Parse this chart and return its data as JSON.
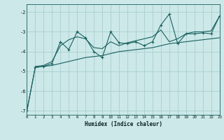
{
  "xlabel": "Humidex (Indice chaleur)",
  "bg_color": "#cce8e8",
  "grid_color": "#aacece",
  "line_color": "#1a6060",
  "xlim": [
    0,
    23
  ],
  "ylim": [
    -7.2,
    -1.6
  ],
  "yticks": [
    -7,
    -6,
    -5,
    -4,
    -3,
    -2
  ],
  "xticks": [
    0,
    1,
    2,
    3,
    4,
    5,
    6,
    7,
    8,
    9,
    10,
    11,
    12,
    13,
    14,
    15,
    16,
    17,
    18,
    19,
    20,
    21,
    22,
    23
  ],
  "main_x": [
    0,
    1,
    2,
    3,
    4,
    5,
    6,
    7,
    8,
    9,
    10,
    11,
    12,
    13,
    14,
    15,
    16,
    17,
    18,
    19,
    20,
    21,
    22,
    23
  ],
  "main_y": [
    -7.0,
    -4.8,
    -4.75,
    -4.6,
    -3.5,
    -3.9,
    -3.0,
    -3.3,
    -4.0,
    -4.3,
    -3.0,
    -3.55,
    -3.6,
    -3.5,
    -3.7,
    -3.5,
    -2.65,
    -2.1,
    -3.6,
    -3.1,
    -3.1,
    -3.05,
    -3.1,
    -2.2
  ],
  "low_x": [
    0,
    1,
    2,
    3,
    4,
    5,
    6,
    7,
    8,
    9,
    10,
    11,
    12,
    13,
    14,
    15,
    16,
    17,
    18,
    19,
    20,
    21,
    22,
    23
  ],
  "low_y": [
    -7.0,
    -4.8,
    -4.75,
    -4.7,
    -4.6,
    -4.5,
    -4.4,
    -4.3,
    -4.25,
    -4.2,
    -4.1,
    -4.0,
    -3.95,
    -3.9,
    -3.85,
    -3.8,
    -3.7,
    -3.6,
    -3.55,
    -3.5,
    -3.45,
    -3.4,
    -3.35,
    -3.3
  ],
  "high_x": [
    1,
    2,
    3,
    4,
    5,
    6,
    7,
    8,
    9,
    10,
    11,
    12,
    13,
    14,
    15,
    16,
    17,
    18,
    19,
    20,
    21,
    22,
    23
  ],
  "high_y": [
    -4.75,
    -4.7,
    -4.5,
    -3.7,
    -3.4,
    -3.25,
    -3.35,
    -3.8,
    -3.85,
    -3.5,
    -3.7,
    -3.55,
    -3.45,
    -3.35,
    -3.25,
    -2.9,
    -3.5,
    -3.35,
    -3.1,
    -3.0,
    -3.0,
    -2.95,
    -2.2
  ]
}
